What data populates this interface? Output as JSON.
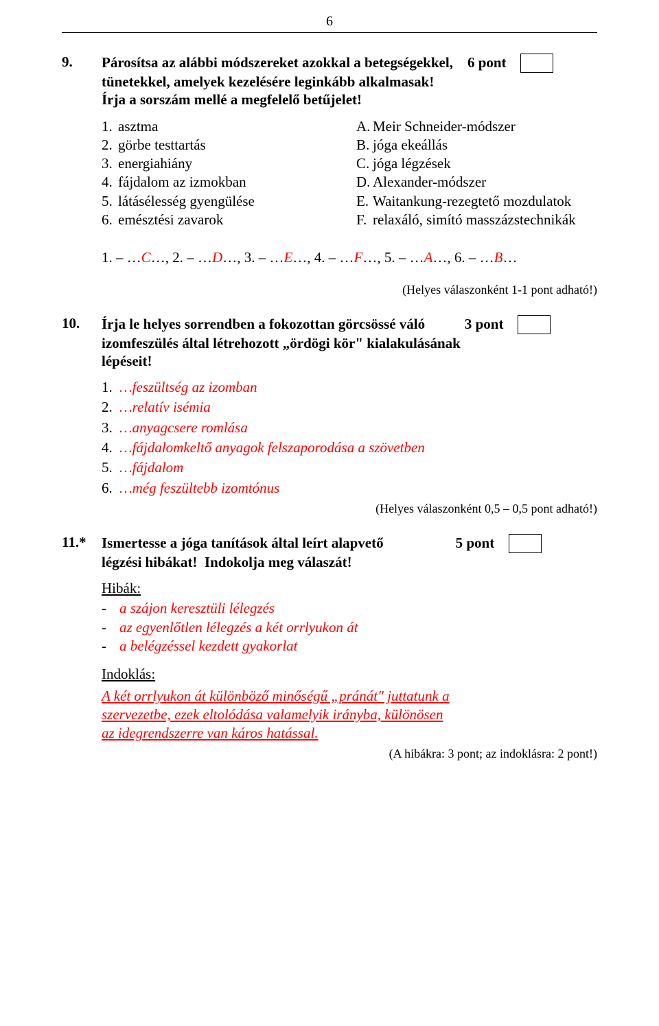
{
  "pageNumber": "6",
  "q9": {
    "num": "9.",
    "text": "Párosítsa az alábbi módszereket azokkal a betegségekkel, tünetekkel, amelyek kezelésére leginkább alkalmasak! Írja a sorszám mellé a megfelelő betűjelet!",
    "points": "6 pont",
    "left": [
      {
        "n": "1.",
        "t": "asztma"
      },
      {
        "n": "2.",
        "t": "görbe testtartás"
      },
      {
        "n": "3.",
        "t": "energiahiány"
      },
      {
        "n": "4.",
        "t": "fájdalom az izmokban"
      },
      {
        "n": "5.",
        "t": "látásélesség gyengülése"
      },
      {
        "n": "6.",
        "t": "emésztési zavarok"
      }
    ],
    "right": [
      {
        "n": "A.",
        "t": "Meir Schneider-módszer"
      },
      {
        "n": "B.",
        "t": "jóga ekeállás"
      },
      {
        "n": "C.",
        "t": "jóga légzések"
      },
      {
        "n": "D.",
        "t": "Alexander-módszer"
      },
      {
        "n": "E.",
        "t": "Waitankung-rezegtető mozdulatok"
      },
      {
        "n": "F.",
        "t": "relaxáló, simító masszázstechnikák"
      }
    ],
    "answers": {
      "p1": "1. – …",
      "a1": "C",
      "s1": "…,  ",
      "p2": "2. – …",
      "a2": "D",
      "s2": "…,  ",
      "p3": "3. – …",
      "a3": "E",
      "s3": "…,  ",
      "p4": "4. – …",
      "a4": "F",
      "s4": "…,  ",
      "p5": "5. – …",
      "a5": "A",
      "s5": "…,  ",
      "p6": "6. – …",
      "a6": "B",
      "s6": "…"
    },
    "scoring": "(Helyes válaszonként 1-1 pont adható!)"
  },
  "q10": {
    "num": "10.",
    "text": "Írja le helyes sorrendben a fokozottan görcsössé váló izomfeszülés által létrehozott „ördögi kör\" kialakulásának lépéseit!",
    "points": "3 pont",
    "steps": [
      {
        "n": "1.",
        "t": "…feszültség az izomban"
      },
      {
        "n": "2.",
        "t": "…relatív isémia"
      },
      {
        "n": "3.",
        "t": "…anyagcsere romlása"
      },
      {
        "n": "4.",
        "t": "…fájdalomkeltő anyagok felszaporodása a szövetben"
      },
      {
        "n": "5.",
        "t": "…fájdalom"
      },
      {
        "n": "6.",
        "t": "…még feszültebb izomtónus"
      }
    ],
    "scoring": "(Helyes válaszonként 0,5 – 0,5 pont adható!)"
  },
  "q11": {
    "num": "11.*",
    "text": "Ismertesse a jóga tanítások által leírt alapvető légzési hibákat!  Indokolja meg válaszát!",
    "points": "5 pont",
    "hibakLabel": "Hibák:",
    "hibak": [
      "a szájon keresztüli lélegzés",
      "az egyenlőtlen lélegzés a két orrlyukon át",
      "a belégzéssel kezdett gyakorlat"
    ],
    "indoklasLabel": "Indoklás:",
    "indoklasLine1": "A két orrlyukon át különböző minőségű „pránát\" juttatunk a",
    "indoklasLine2": "szervezetbe, ezek eltolódása valamelyik irányba, különösen",
    "indoklasLine3": "az idegrendszerre van káros hatással.",
    "scoring": "(A hibákra: 3 pont; az indoklásra: 2 pont!)"
  }
}
